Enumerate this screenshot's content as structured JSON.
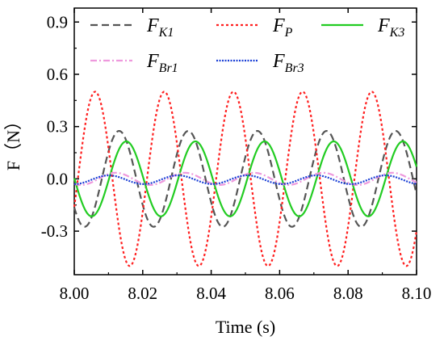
{
  "chart_data": {
    "type": "line",
    "xlabel": "Time (s)",
    "ylabel": "F（N）",
    "xlim": [
      8.0,
      8.1
    ],
    "ylim": [
      -0.55,
      0.98
    ],
    "xticks": [
      "8.00",
      "8.02",
      "8.04",
      "8.06",
      "8.08",
      "8.10"
    ],
    "yticks": [
      "-0.3",
      "0.0",
      "0.3",
      "0.6",
      "0.9"
    ],
    "x_tick_values": [
      8.0,
      8.02,
      8.04,
      8.06,
      8.08,
      8.1
    ],
    "y_tick_values": [
      -0.3,
      0.0,
      0.3,
      0.6,
      0.9
    ],
    "grid": false,
    "legend_placement": "top",
    "series": [
      {
        "name": "F_K1",
        "label_main": "F",
        "label_sub": "K1",
        "color": "#555555",
        "style": "dash",
        "amplitude": 0.275,
        "frequency_hz": 49.5,
        "first_peak_x": 8.0131,
        "offset": 0.0
      },
      {
        "name": "F_P",
        "label_main": "F",
        "label_sub": "P",
        "color": "#ff2020",
        "style": "dot",
        "amplitude": 0.5,
        "frequency_hz": 49.5,
        "first_peak_x": 8.0061,
        "offset": 0.0
      },
      {
        "name": "F_K3",
        "label_main": "F",
        "label_sub": "K3",
        "color": "#22cc22",
        "style": "solid",
        "amplitude": 0.215,
        "frequency_hz": 49.5,
        "first_peak_x": 8.0152,
        "offset": 0.0
      },
      {
        "name": "F_Br1",
        "label_main": "F",
        "label_sub": "Br1",
        "color": "#ee99dd",
        "style": "dashdot",
        "amplitude": 0.035,
        "frequency_hz": 49.5,
        "first_peak_x": 8.0121,
        "offset": 0.0
      },
      {
        "name": "F_Br3",
        "label_main": "F",
        "label_sub": "Br3",
        "color": "#1a3fd6",
        "style": "dense-dot",
        "amplitude": 0.025,
        "frequency_hz": 49.5,
        "first_peak_x": 8.0101,
        "offset": -0.005
      }
    ]
  }
}
